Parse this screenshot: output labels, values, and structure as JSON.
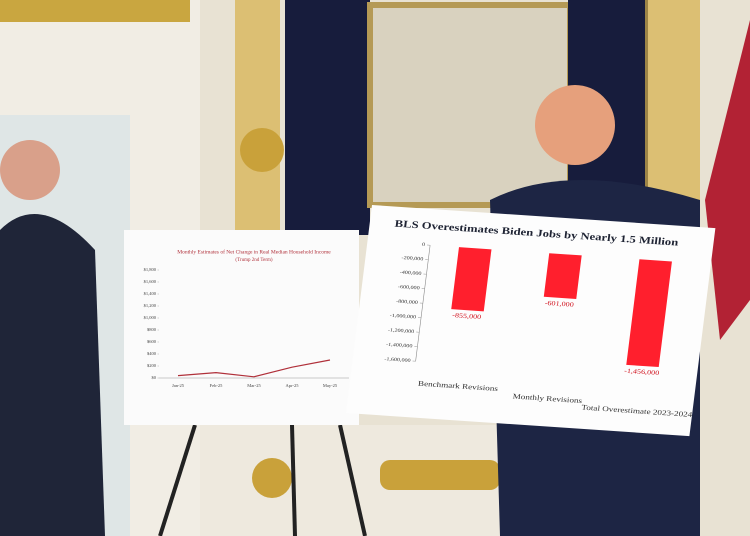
{
  "chart_data": [
    {
      "type": "line",
      "title": "Monthly Estimates of Net Change in Real Median Household Income",
      "subtitle": "(Trump 2nd Term)",
      "categories": [
        "Jan-25",
        "Feb-25",
        "Mar-25",
        "Apr-25",
        "May-25"
      ],
      "values": [
        40,
        90,
        20,
        180,
        300
      ],
      "color": "#b0303a",
      "ylim": [
        0,
        1800
      ],
      "yticks": [
        {
          "value": 0,
          "label": "$0"
        },
        {
          "value": 200,
          "label": "$200"
        },
        {
          "value": 400,
          "label": "$400"
        },
        {
          "value": 600,
          "label": "$600"
        },
        {
          "value": 800,
          "label": "$800"
        },
        {
          "value": 1000,
          "label": "$1,000"
        },
        {
          "value": 1200,
          "label": "$1,200"
        },
        {
          "value": 1400,
          "label": "$1,400"
        },
        {
          "value": 1600,
          "label": "$1,600"
        },
        {
          "value": 1800,
          "label": "$1,800"
        }
      ]
    },
    {
      "type": "bar",
      "title": "BLS Overestimates Biden Jobs by Nearly 1.5 Million",
      "categories": [
        "Benchmark Revisions",
        "Monthly Revisions",
        "Total Overestimate 2023-2024"
      ],
      "values": [
        -855000,
        -601000,
        -1456000
      ],
      "value_labels": [
        "-855,000",
        "-601,000",
        "-1,456,000"
      ],
      "color": "#ff1f2d",
      "ylim": [
        -1600000,
        0
      ],
      "yticks": [
        0,
        {
          "value": -200000,
          "label": "-200,000"
        },
        {
          "value": -400000,
          "label": "-400,000"
        },
        {
          "value": -600000,
          "label": "-600,000"
        },
        {
          "value": -800000,
          "label": "-800,000"
        },
        {
          "value": -1000000,
          "label": "-1,000,000"
        },
        {
          "value": -1200000,
          "label": "-1,200,000"
        },
        {
          "value": -1400000,
          "label": "-1,400,000"
        },
        {
          "value": -1600000,
          "label": "-1,600,000"
        }
      ]
    }
  ]
}
